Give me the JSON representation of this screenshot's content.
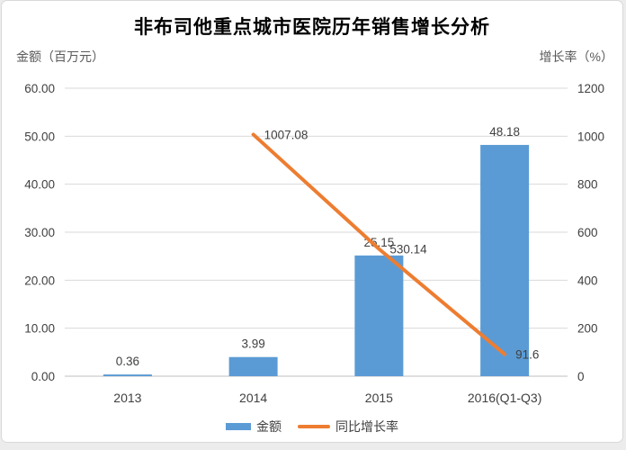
{
  "chart_data": {
    "type": "combo-bar-line",
    "title": "非布司他重点城市医院历年销售增长分析",
    "categories": [
      "2013",
      "2014",
      "2015",
      "2016(Q1-Q3)"
    ],
    "series": [
      {
        "name": "金额",
        "type": "bar",
        "axis": "left",
        "color": "#5B9BD5",
        "values": [
          0.36,
          3.99,
          25.15,
          48.18
        ],
        "labels": [
          "0.36",
          "3.99",
          "25.15",
          "48.18"
        ]
      },
      {
        "name": "同比增长率",
        "type": "line",
        "axis": "right",
        "color": "#ED7D31",
        "values": [
          null,
          1007.08,
          530.14,
          91.6
        ],
        "labels": [
          "",
          "1007.08",
          "530.14",
          "91.6"
        ]
      }
    ],
    "left_axis": {
      "title": "金额（百万元）",
      "min": 0,
      "max": 60,
      "step": 10,
      "ticks": [
        "0.00",
        "10.00",
        "20.00",
        "30.00",
        "40.00",
        "50.00",
        "60.00"
      ]
    },
    "right_axis": {
      "title": "增长率（%）",
      "min": 0,
      "max": 1200,
      "step": 200,
      "ticks": [
        "0",
        "200",
        "400",
        "600",
        "800",
        "1000",
        "1200"
      ]
    },
    "grid": true,
    "legend_position": "bottom",
    "colors": {
      "grid": "#d9d9d9",
      "axis_line": "#bfbfbf",
      "tick_text": "#404040",
      "label_text": "#404040",
      "title_text": "#000000",
      "axis_title_text": "#595959"
    }
  }
}
